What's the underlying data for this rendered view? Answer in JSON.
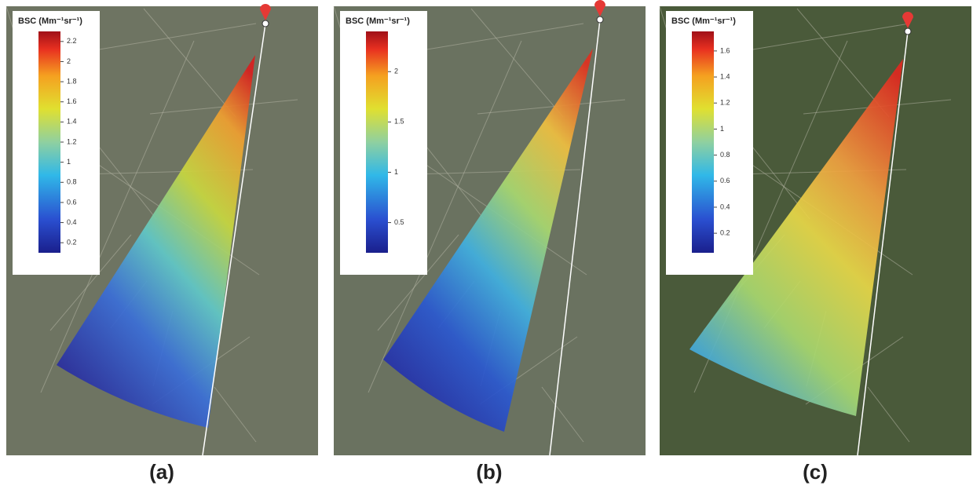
{
  "panels": [
    {
      "label": "(a)",
      "colorbar": {
        "title": "BSC (Mm⁻¹sr⁻¹)",
        "lim": [
          0.1,
          2.3
        ],
        "ticks": [
          2.2,
          2,
          1.8,
          1.6,
          1.4,
          1.2,
          1,
          0.8,
          0.6,
          0.4,
          0.2
        ]
      }
    },
    {
      "label": "(b)",
      "colorbar": {
        "title": "BSC (Mm⁻¹sr⁻¹)",
        "lim": [
          0.2,
          2.4
        ],
        "ticks": [
          2,
          1.5,
          1,
          0.5
        ]
      }
    },
    {
      "label": "(c)",
      "colorbar": {
        "title": "BSC (Mm⁻¹sr⁻¹)",
        "lim": [
          0.05,
          1.75
        ],
        "ticks": [
          1.6,
          1.4,
          1.2,
          1,
          0.8,
          0.6,
          0.4,
          0.2
        ]
      }
    }
  ]
}
